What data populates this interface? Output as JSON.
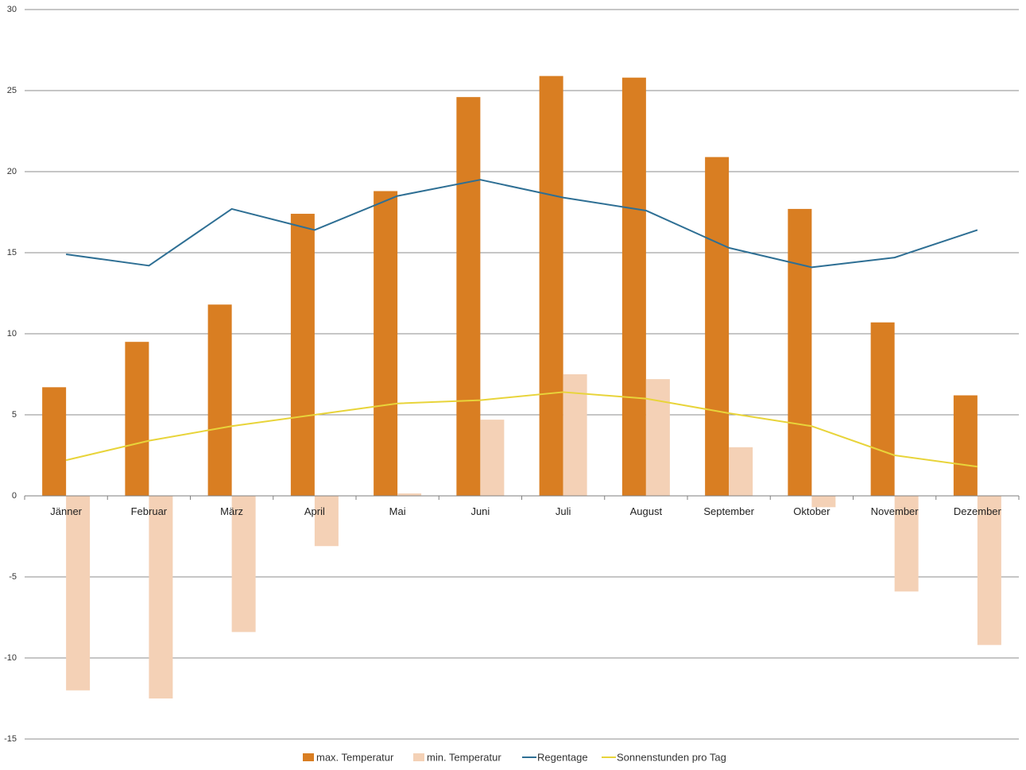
{
  "chart_data": {
    "type": "bar",
    "categories": [
      "Jänner",
      "Februar",
      "März",
      "April",
      "Mai",
      "Juni",
      "Juli",
      "August",
      "September",
      "Oktober",
      "November",
      "Dezember"
    ],
    "series": [
      {
        "name": "max. Temperatur",
        "kind": "bar",
        "color": "#d97e22",
        "values": [
          6.7,
          9.5,
          11.8,
          17.4,
          18.8,
          24.6,
          25.9,
          25.8,
          20.9,
          17.7,
          10.7,
          6.2
        ]
      },
      {
        "name": "min. Temperatur",
        "kind": "bar",
        "color": "#f4d1b6",
        "values": [
          -12.0,
          -12.5,
          -8.4,
          -3.1,
          0.15,
          4.7,
          7.5,
          7.2,
          3.0,
          -0.7,
          -5.9,
          -9.2
        ]
      },
      {
        "name": "Regentage",
        "kind": "line",
        "color": "#2e6f94",
        "values": [
          14.9,
          14.2,
          17.7,
          16.4,
          18.5,
          19.5,
          18.4,
          17.6,
          15.3,
          14.1,
          14.7,
          16.4
        ]
      },
      {
        "name": "Sonnenstunden pro Tag",
        "kind": "line",
        "color": "#e8d43a",
        "values": [
          2.2,
          3.4,
          4.3,
          5.0,
          5.7,
          5.9,
          6.4,
          6.0,
          5.1,
          4.3,
          2.5,
          1.8
        ]
      }
    ],
    "title": "",
    "xlabel": "",
    "ylabel": "",
    "ylim": [
      -15,
      30
    ],
    "yticks": [
      "30",
      "25",
      "20",
      "15",
      "10",
      "5",
      "0",
      "-5",
      "-10",
      "-15"
    ],
    "grid": true,
    "legend_position": "bottom-center"
  }
}
